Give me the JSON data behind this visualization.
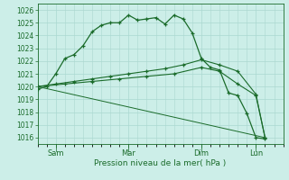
{
  "bg_color": "#cceee8",
  "grid_color": "#aad8d0",
  "line_color": "#1a6b2a",
  "title": "Pression niveau de la mer( hPa )",
  "ylim": [
    1015.5,
    1026.5
  ],
  "yticks": [
    1016,
    1017,
    1018,
    1019,
    1020,
    1021,
    1022,
    1023,
    1024,
    1025,
    1026
  ],
  "xtick_labels": [
    "Sam",
    "Mar",
    "Dim",
    "Lun"
  ],
  "xtick_pos": [
    2,
    10,
    18,
    24
  ],
  "xlim": [
    0,
    27
  ],
  "line1_x": [
    0,
    1,
    2,
    3,
    4,
    5,
    6,
    7,
    8,
    9,
    10,
    11,
    12,
    13,
    14,
    15,
    16,
    17,
    18,
    19,
    20,
    21,
    22,
    23,
    24,
    25
  ],
  "line1_y": [
    1019.8,
    1020.0,
    1021.0,
    1022.2,
    1022.5,
    1023.2,
    1024.3,
    1024.8,
    1025.0,
    1025.0,
    1025.6,
    1025.2,
    1025.3,
    1025.4,
    1024.9,
    1025.6,
    1025.3,
    1024.2,
    1022.2,
    1021.5,
    1021.3,
    1019.5,
    1019.3,
    1017.9,
    1016.0,
    1015.9
  ],
  "line2_x": [
    0,
    2,
    4,
    6,
    8,
    10,
    12,
    14,
    16,
    18,
    20,
    22,
    24,
    25
  ],
  "line2_y": [
    1020.0,
    1020.2,
    1020.4,
    1020.6,
    1020.8,
    1021.0,
    1021.2,
    1021.4,
    1021.7,
    1022.1,
    1021.7,
    1021.2,
    1019.4,
    1016.0
  ],
  "line3_x": [
    0,
    3,
    6,
    9,
    12,
    15,
    18,
    20,
    22,
    24,
    25
  ],
  "line3_y": [
    1020.0,
    1020.2,
    1020.4,
    1020.6,
    1020.8,
    1021.0,
    1021.5,
    1021.2,
    1020.2,
    1019.3,
    1016.0
  ],
  "line4_x": [
    0,
    25
  ],
  "line4_y": [
    1020.0,
    1016.0
  ]
}
